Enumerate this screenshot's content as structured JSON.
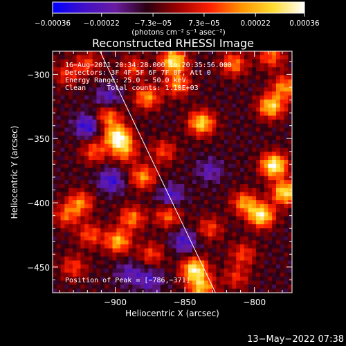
{
  "chart_data": {
    "type": "heatmap",
    "title": "Reconstructed RHESSI Image",
    "xlabel": "Heliocentric X (arcsec)",
    "ylabel": "Heliocentric Y (arcsec)",
    "xlim": [
      -945,
      -773
    ],
    "ylim": [
      -470,
      -282
    ],
    "x_ticks": [
      -900,
      -850,
      -800
    ],
    "x_tick_labels": [
      "−900",
      "−850",
      "−800"
    ],
    "y_ticks": [
      -300,
      -350,
      -400,
      -450
    ],
    "y_tick_labels": [
      "−300",
      "−350",
      "−400",
      "−450"
    ],
    "colorbar": {
      "range": [
        -0.00036,
        0.00036
      ],
      "tick_values": [
        -0.00036,
        -0.00022,
        -7.3e-05,
        7.3e-05,
        0.00022,
        0.00036
      ],
      "tick_labels": [
        "−0.00036",
        "−0.00022",
        "−7.3e−05",
        "7.3e−05",
        "0.00022",
        "0.00036"
      ],
      "unit_label": "(photons cm⁻² s⁻¹ asec⁻²)",
      "colors": [
        "#0000ff",
        "#4010c8",
        "#6a1ca0",
        "#2a0010",
        "#a00000",
        "#ff2000",
        "#ff9400",
        "#ffdc30",
        "#ffffff"
      ]
    },
    "annotations": [
      "16−Aug−2011 20:34:28.000 to 20:35:56.000",
      "Detectors: 3F 4F 5F 6F 7F 8F, Att 0",
      "Energy Range: 25.0 − 50.0 keV",
      "Clean     Total counts: 1.10E+03"
    ],
    "peak_label": "Position of Peak = [−786,−371]",
    "limb_line": [
      [
        -911,
        -282
      ],
      [
        -828,
        -470
      ]
    ],
    "grid": false,
    "sources": [
      {
        "x": -898,
        "y": -349,
        "amp": 1.0
      },
      {
        "x": -905,
        "y": -333,
        "amp": 0.55
      },
      {
        "x": -915,
        "y": -360,
        "amp": 0.45
      },
      {
        "x": -893,
        "y": -360,
        "amp": 0.5
      },
      {
        "x": -858,
        "y": -290,
        "amp": 0.9
      },
      {
        "x": -855,
        "y": -308,
        "amp": 0.55
      },
      {
        "x": -877,
        "y": -318,
        "amp": 0.6
      },
      {
        "x": -887,
        "y": -295,
        "amp": 0.4
      },
      {
        "x": -838,
        "y": -338,
        "amp": 0.8
      },
      {
        "x": -815,
        "y": -292,
        "amp": 0.55
      },
      {
        "x": -788,
        "y": -286,
        "amp": 0.5
      },
      {
        "x": -786,
        "y": -371,
        "amp": 1.0
      },
      {
        "x": -778,
        "y": -392,
        "amp": 0.85
      },
      {
        "x": -788,
        "y": -325,
        "amp": 0.8
      },
      {
        "x": -795,
        "y": -410,
        "amp": 0.9
      },
      {
        "x": -778,
        "y": -310,
        "amp": 0.6
      },
      {
        "x": -807,
        "y": -400,
        "amp": 0.6
      },
      {
        "x": -808,
        "y": -440,
        "amp": 0.4
      },
      {
        "x": -813,
        "y": -458,
        "amp": 0.35
      },
      {
        "x": -843,
        "y": -452,
        "amp": 0.9
      },
      {
        "x": -838,
        "y": -466,
        "amp": 0.7
      },
      {
        "x": -880,
        "y": -380,
        "amp": 0.6
      },
      {
        "x": -862,
        "y": -410,
        "amp": 0.5
      },
      {
        "x": -888,
        "y": -412,
        "amp": 0.55
      },
      {
        "x": -898,
        "y": -430,
        "amp": 0.7
      },
      {
        "x": -925,
        "y": -400,
        "amp": 0.55
      },
      {
        "x": -935,
        "y": -410,
        "amp": 0.45
      },
      {
        "x": -930,
        "y": -450,
        "amp": 0.4
      },
      {
        "x": -918,
        "y": -425,
        "amp": 0.45
      },
      {
        "x": -874,
        "y": -440,
        "amp": 0.4
      },
      {
        "x": -935,
        "y": -300,
        "amp": 0.35
      },
      {
        "x": -920,
        "y": -292,
        "amp": 0.4
      },
      {
        "x": -865,
        "y": -360,
        "amp": 0.4
      },
      {
        "x": -832,
        "y": -420,
        "amp": 0.4
      },
      {
        "x": -903,
        "y": -383,
        "amp": -0.45
      },
      {
        "x": -920,
        "y": -340,
        "amp": -0.5
      },
      {
        "x": -860,
        "y": -395,
        "amp": -0.4
      },
      {
        "x": -905,
        "y": -318,
        "amp": -0.35
      },
      {
        "x": -850,
        "y": -430,
        "amp": -0.4
      },
      {
        "x": -875,
        "y": -460,
        "amp": -0.35
      },
      {
        "x": -832,
        "y": -375,
        "amp": -0.3
      },
      {
        "x": -890,
        "y": -455,
        "amp": -0.3
      }
    ]
  },
  "footer": {
    "timestamp": "13−May−2022 07:38"
  }
}
